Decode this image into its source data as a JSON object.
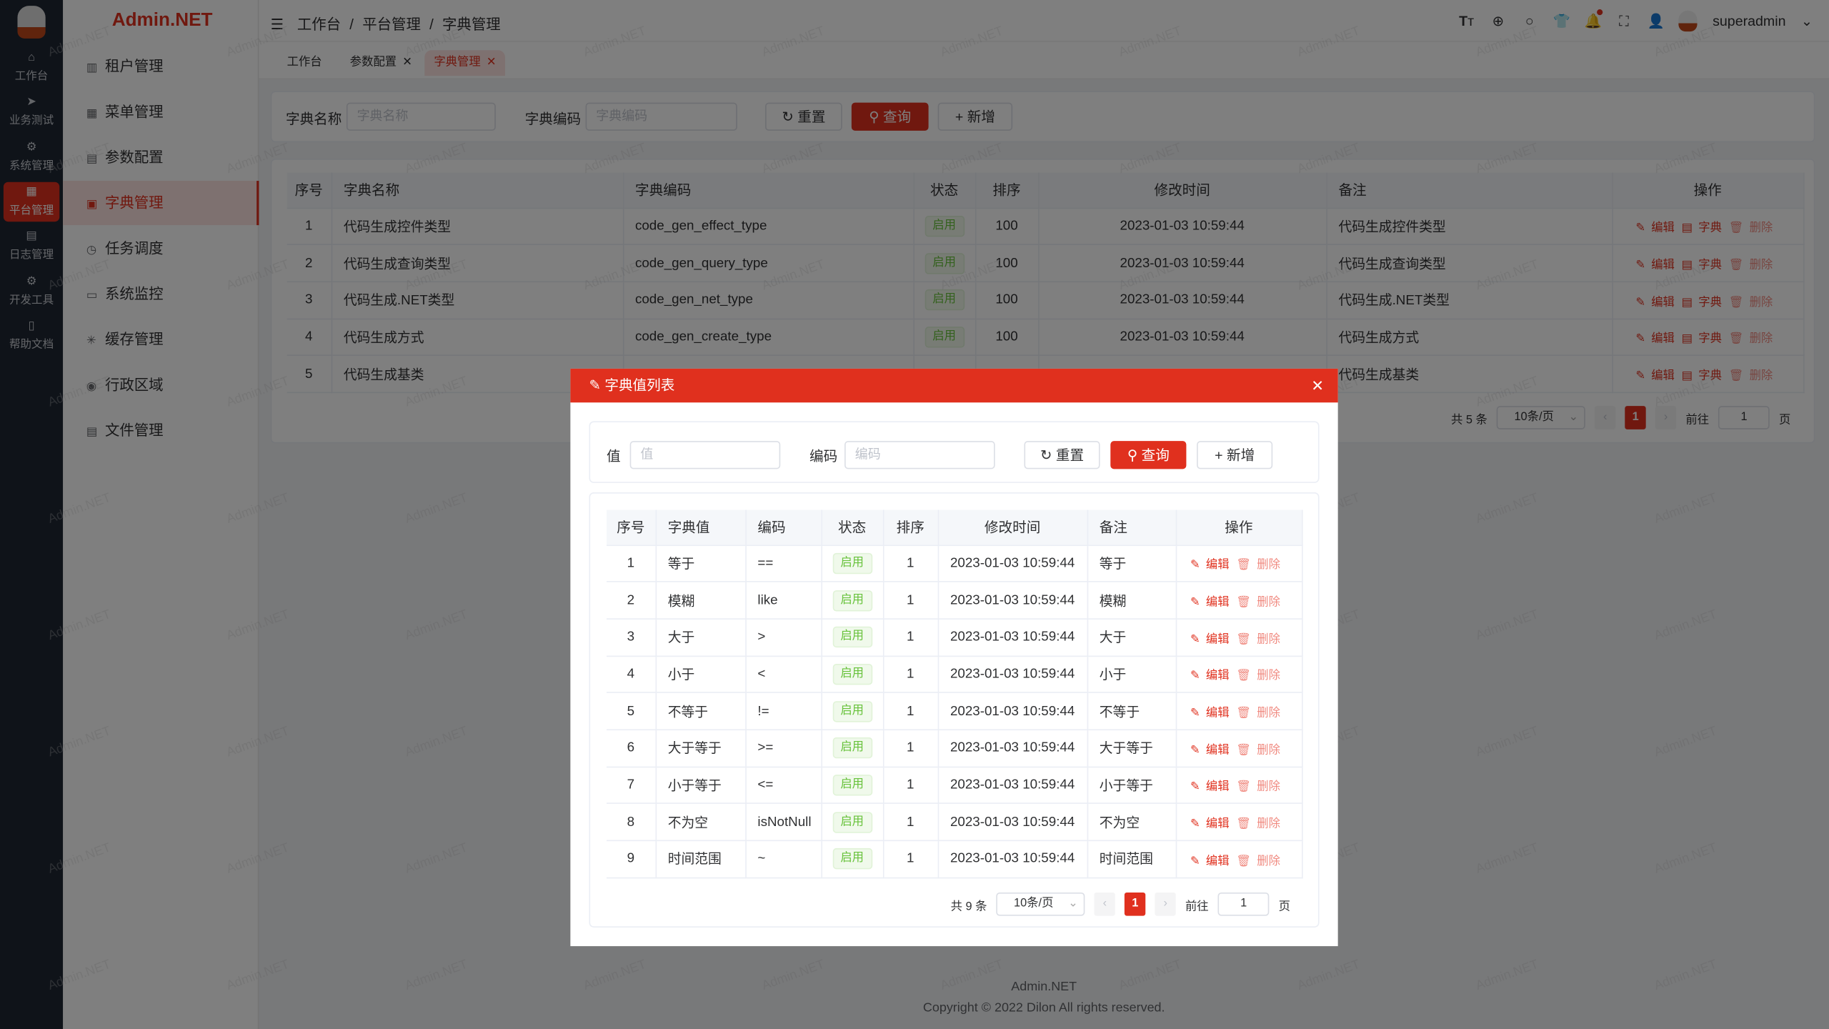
{
  "brand": "Admin.NET",
  "watermark": "Admin.NET",
  "rail": [
    {
      "label": "工作台",
      "icon": "⌂"
    },
    {
      "label": "业务测试",
      "icon": "➤"
    },
    {
      "label": "系统管理",
      "icon": "⚙"
    },
    {
      "label": "平台管理",
      "icon": "▦",
      "active": true
    },
    {
      "label": "日志管理",
      "icon": "▤"
    },
    {
      "label": "开发工具",
      "icon": "⚙"
    },
    {
      "label": "帮助文档",
      "icon": "▯"
    }
  ],
  "menu": [
    {
      "label": "租户管理",
      "icon": "▥"
    },
    {
      "label": "菜单管理",
      "icon": "▦"
    },
    {
      "label": "参数配置",
      "icon": "▤"
    },
    {
      "label": "字典管理",
      "icon": "▣",
      "active": true
    },
    {
      "label": "任务调度",
      "icon": "◷"
    },
    {
      "label": "系统监控",
      "icon": "▭"
    },
    {
      "label": "缓存管理",
      "icon": "✳"
    },
    {
      "label": "行政区域",
      "icon": "◉"
    },
    {
      "label": "文件管理",
      "icon": "▤"
    }
  ],
  "breadcrumb": [
    "工作台",
    "/",
    "平台管理",
    "/",
    "字典管理"
  ],
  "user": {
    "name": "superadmin"
  },
  "tabs": [
    {
      "label": "工作台",
      "closable": false
    },
    {
      "label": "参数配置",
      "closable": true
    },
    {
      "label": "字典管理",
      "closable": true,
      "active": true
    }
  ],
  "search": {
    "name_label": "字典名称",
    "name_placeholder": "字典名称",
    "code_label": "字典编码",
    "code_placeholder": "字典编码",
    "reset": "重置",
    "query": "查询",
    "add": "新增"
  },
  "table": {
    "headers": [
      "序号",
      "字典名称",
      "字典编码",
      "状态",
      "排序",
      "修改时间",
      "备注",
      "操作"
    ],
    "rows": [
      [
        "1",
        "代码生成控件类型",
        "code_gen_effect_type",
        "启用",
        "100",
        "2023-01-03 10:59:44",
        "代码生成控件类型"
      ],
      [
        "2",
        "代码生成查询类型",
        "code_gen_query_type",
        "启用",
        "100",
        "2023-01-03 10:59:44",
        "代码生成查询类型"
      ],
      [
        "3",
        "代码生成.NET类型",
        "code_gen_net_type",
        "启用",
        "100",
        "2023-01-03 10:59:44",
        "代码生成.NET类型"
      ],
      [
        "4",
        "代码生成方式",
        "code_gen_create_type",
        "启用",
        "100",
        "2023-01-03 10:59:44",
        "代码生成方式"
      ],
      [
        "5",
        "代码生成基类",
        "",
        "",
        "",
        "",
        "代码生成基类"
      ]
    ],
    "actions": {
      "edit": "编辑",
      "dict": "字典",
      "delete": "删除"
    }
  },
  "pagination": {
    "total": "共 5 条",
    "size": "10条/页",
    "page": "1",
    "goto": "前往",
    "goto_value": "1",
    "page_suffix": "页"
  },
  "modal": {
    "title": "字典值列表",
    "search": {
      "value_label": "值",
      "value_placeholder": "值",
      "code_label": "编码",
      "code_placeholder": "编码",
      "reset": "重置",
      "query": "查询",
      "add": "新增"
    },
    "headers": [
      "序号",
      "字典值",
      "编码",
      "状态",
      "排序",
      "修改时间",
      "备注",
      "操作"
    ],
    "rows": [
      [
        "1",
        "等于",
        "==",
        "启用",
        "1",
        "2023-01-03 10:59:44",
        "等于"
      ],
      [
        "2",
        "模糊",
        "like",
        "启用",
        "1",
        "2023-01-03 10:59:44",
        "模糊"
      ],
      [
        "3",
        "大于",
        ">",
        "启用",
        "1",
        "2023-01-03 10:59:44",
        "大于"
      ],
      [
        "4",
        "小于",
        "<",
        "启用",
        "1",
        "2023-01-03 10:59:44",
        "小于"
      ],
      [
        "5",
        "不等于",
        "!=",
        "启用",
        "1",
        "2023-01-03 10:59:44",
        "不等于"
      ],
      [
        "6",
        "大于等于",
        ">=",
        "启用",
        "1",
        "2023-01-03 10:59:44",
        "大于等于"
      ],
      [
        "7",
        "小于等于",
        "<=",
        "启用",
        "1",
        "2023-01-03 10:59:44",
        "小于等于"
      ],
      [
        "8",
        "不为空",
        "isNotNull",
        "启用",
        "1",
        "2023-01-03 10:59:44",
        "不为空"
      ],
      [
        "9",
        "时间范围",
        "~",
        "启用",
        "1",
        "2023-01-03 10:59:44",
        "时间范围"
      ]
    ],
    "actions": {
      "edit": "编辑",
      "delete": "删除"
    },
    "pagination": {
      "total": "共 9 条",
      "size": "10条/页",
      "page": "1",
      "goto": "前往",
      "goto_value": "1",
      "page_suffix": "页"
    }
  },
  "footer": {
    "name": "Admin.NET",
    "copyright": "Copyright © 2022 Dilon All rights reserved."
  },
  "colors": {
    "primary": "#e0301e",
    "success": "#67c23a",
    "sidebar": "#1e2633"
  }
}
